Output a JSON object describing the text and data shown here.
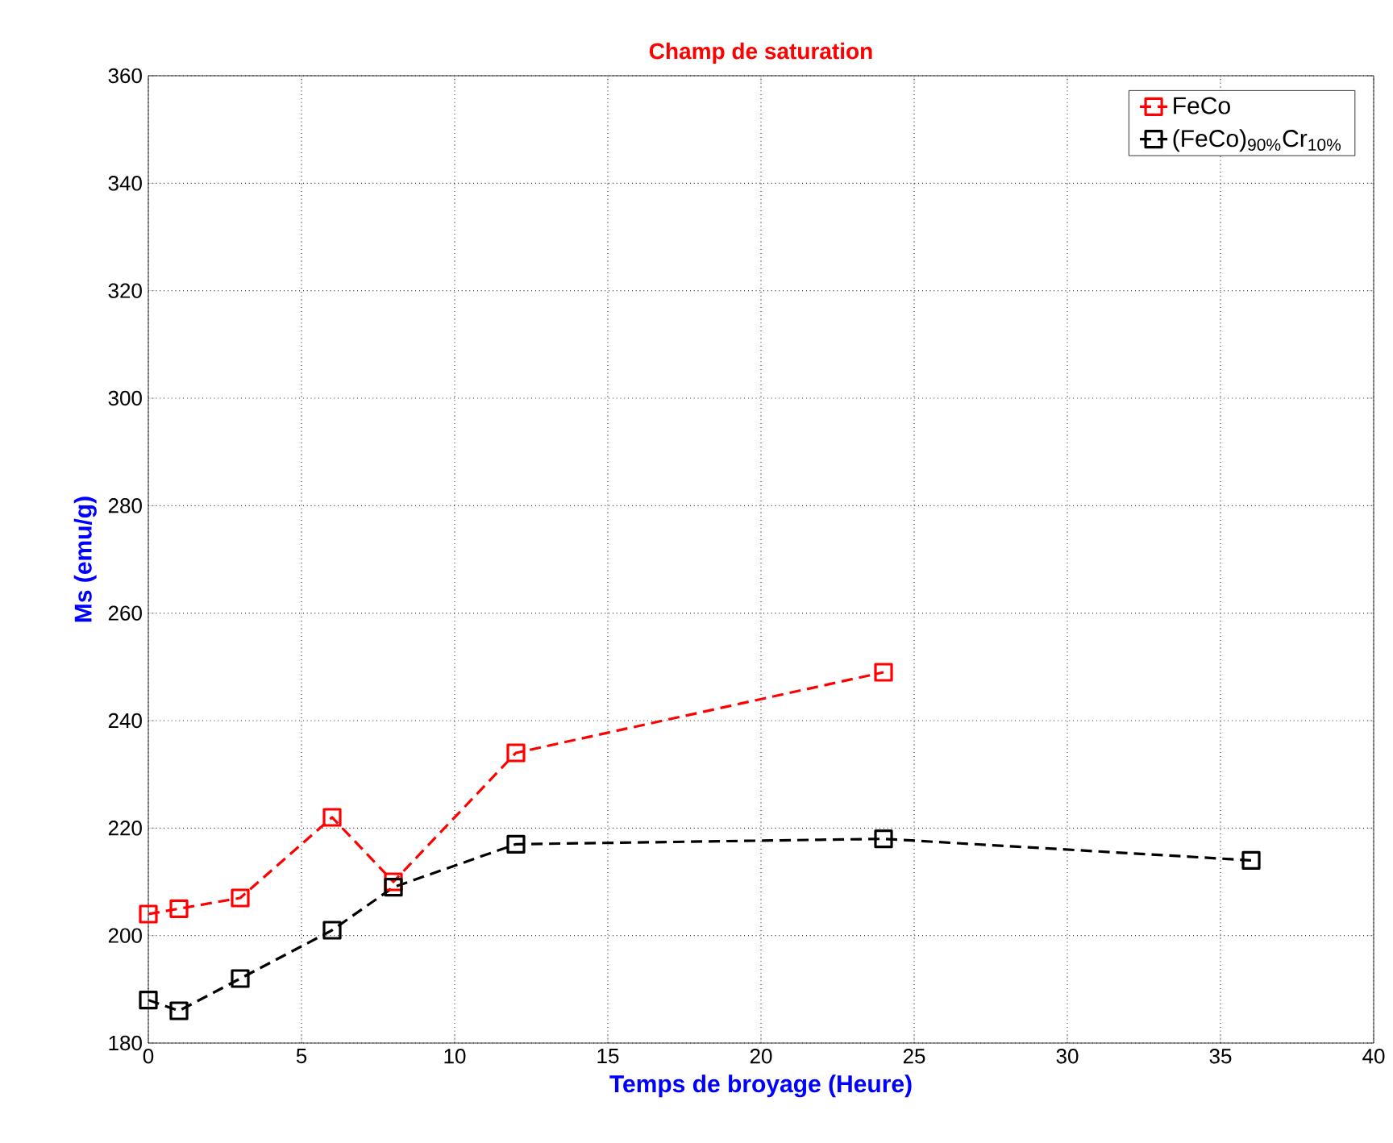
{
  "chart_data": {
    "type": "line",
    "title": "Champ de saturation",
    "xlabel": "Temps de broyage (Heure)",
    "ylabel": "Ms (emu/g)",
    "x": [
      0,
      1,
      3,
      6,
      8,
      12,
      24,
      36
    ],
    "series": [
      {
        "name": "FeCo",
        "color": "#ff0000",
        "values": [
          204,
          205,
          207,
          222,
          210,
          234,
          249,
          null
        ]
      },
      {
        "name": "(FeCo)$_{90%}$Cr$_{10%}$",
        "color": "#000000",
        "values": [
          188,
          186,
          192,
          201,
          209,
          217,
          218,
          214
        ]
      }
    ],
    "xlim": [
      0,
      40
    ],
    "ylim": [
      180,
      360
    ],
    "xticks": [
      0,
      5,
      10,
      15,
      20,
      25,
      30,
      35,
      40
    ],
    "yticks": [
      180,
      200,
      220,
      240,
      260,
      280,
      300,
      320,
      340,
      360
    ],
    "grid": true,
    "legend": "top right",
    "marker": "square",
    "line_style": "dashed"
  }
}
